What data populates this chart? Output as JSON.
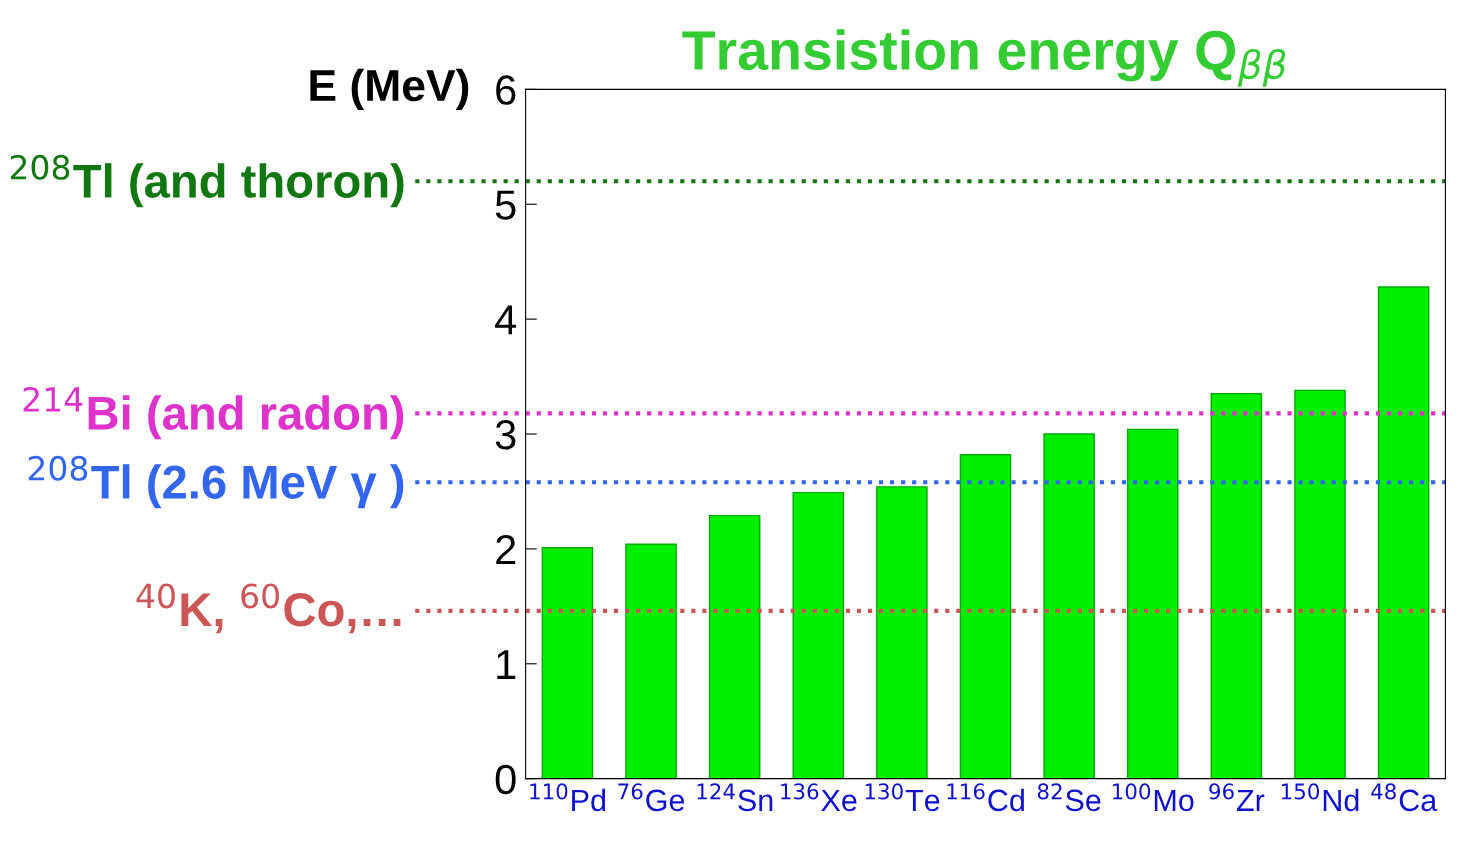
{
  "chart_data": {
    "type": "bar",
    "title": "Transistion energy Q$_{ββ}$",
    "ylabel": "E (MeV)",
    "categories": [
      "$^{110}$Pd",
      "$^{76}$Ge",
      "$^{124}$Sn",
      "$^{136}$Xe",
      "$^{130}$Te",
      "$^{116}$Cd",
      "$^{82}$Se",
      "$^{100}$Mo",
      "$^{96}$Zr",
      "$^{150}$Nd",
      "$^{48}$Ca"
    ],
    "values": [
      2.01,
      2.04,
      2.29,
      2.49,
      2.54,
      2.82,
      3.0,
      3.04,
      3.35,
      3.38,
      4.28
    ],
    "color": "#00ee00",
    "ylim": [
      0,
      6
    ],
    "yticks": [
      0,
      1,
      2,
      3,
      4,
      5,
      6
    ],
    "grid": false,
    "legend": false,
    "ref_lines": [
      {
        "axis": "y",
        "value": 5.2,
        "label": "$^{208}$Tl (and thoron)",
        "color": "#117711",
        "line_style": "dotted"
      },
      {
        "axis": "y",
        "value": 3.18,
        "label": "$^{214}$Bi (and radon)",
        "color": "#dd33cc",
        "line_style": "dotted"
      },
      {
        "axis": "y",
        "value": 2.58,
        "label": "$^{208}$Tl (2.6 MeV γ )",
        "color": "#3366ee",
        "line_style": "dotted"
      },
      {
        "axis": "y",
        "value": 1.46,
        "label": "$^{40}$K, $^{60}$Co,…",
        "color": "#cc5555",
        "line_style": "dotted"
      }
    ]
  }
}
